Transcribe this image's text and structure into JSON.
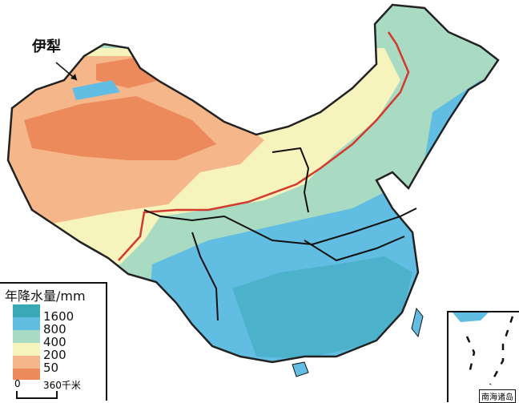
{
  "map": {
    "place_label": "伊犁",
    "legend": {
      "title": "年降水量/mm",
      "items": [
        {
          "label": "1600",
          "color": "#3aa8b6"
        },
        {
          "label": "800",
          "color": "#62bde3"
        },
        {
          "label": "400",
          "color": "#a9dbc3"
        },
        {
          "label": "200",
          "color": "#f6f3bd"
        },
        {
          "label": "50",
          "color": "#f5b68a"
        }
      ],
      "extra_color": "#ec8a5c"
    },
    "scale": {
      "start": "0",
      "end": "360千米"
    },
    "inset_label": "南海诸岛"
  }
}
